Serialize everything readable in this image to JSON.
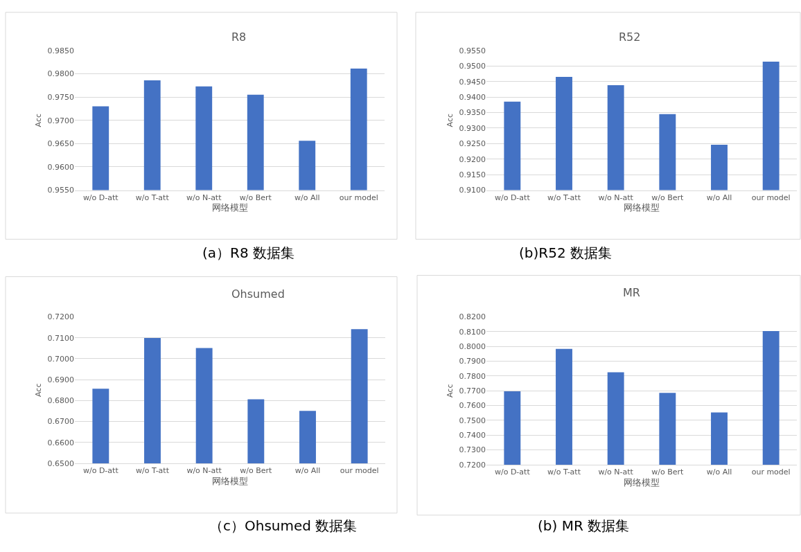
{
  "chart_data": [
    {
      "type": "bar",
      "title": "R8",
      "xlabel": "网络模型",
      "ylabel": "Acc",
      "categories": [
        "w/o D-att",
        "w/o T-att",
        "w/o N-att",
        "w/o Bert",
        "w/o All",
        "our model"
      ],
      "values": [
        0.973,
        0.9786,
        0.9773,
        0.9755,
        0.9656,
        0.9811
      ],
      "color": "#4472c4",
      "ylim": [
        0.955,
        0.985
      ],
      "yticks": [
        {
          "value": 0.955,
          "label": "0.9550"
        },
        {
          "value": 0.96,
          "label": "0.9600"
        },
        {
          "value": 0.965,
          "label": "0.9650"
        },
        {
          "value": 0.97,
          "label": "0.9700"
        },
        {
          "value": 0.975,
          "label": "0.9750"
        },
        {
          "value": 0.98,
          "label": "0.9800"
        },
        {
          "value": 0.985,
          "label": "0.9850"
        }
      ],
      "grid": "y",
      "annotations": [
        "(a）R8 数据集"
      ]
    },
    {
      "type": "bar",
      "title": "R52",
      "xlabel": "网络模型",
      "ylabel": "Acc",
      "categories": [
        "w/o D-att",
        "w/o T-att",
        "w/o N-att",
        "w/o Bert",
        "w/o All",
        "our model"
      ],
      "values": [
        0.9385,
        0.9465,
        0.9438,
        0.9345,
        0.9246,
        0.9514
      ],
      "color": "#4472c4",
      "ylim": [
        0.91,
        0.955
      ],
      "yticks": [
        {
          "value": 0.91,
          "label": "0.9100"
        },
        {
          "value": 0.915,
          "label": "0.9150"
        },
        {
          "value": 0.92,
          "label": "0.9200"
        },
        {
          "value": 0.925,
          "label": "0.9250"
        },
        {
          "value": 0.93,
          "label": "0.9300"
        },
        {
          "value": 0.935,
          "label": "0.9350"
        },
        {
          "value": 0.94,
          "label": "0.9400"
        },
        {
          "value": 0.945,
          "label": "0.9450"
        },
        {
          "value": 0.95,
          "label": "0.9500"
        },
        {
          "value": 0.955,
          "label": "0.9550"
        }
      ],
      "grid": "y",
      "annotations": [
        "(b)R52 数据集"
      ]
    },
    {
      "type": "bar",
      "title": "Ohsumed",
      "xlabel": "网络模型",
      "ylabel": "Acc",
      "categories": [
        "w/o D-att",
        "w/o T-att",
        "w/o N-att",
        "w/o Bert",
        "w/o All",
        "our model"
      ],
      "values": [
        0.6857,
        0.7099,
        0.7051,
        0.6806,
        0.6751,
        0.7141
      ],
      "color": "#4472c4",
      "ylim": [
        0.65,
        0.72
      ],
      "yticks": [
        {
          "value": 0.65,
          "label": "0.6500"
        },
        {
          "value": 0.66,
          "label": "0.6600"
        },
        {
          "value": 0.67,
          "label": "0.6700"
        },
        {
          "value": 0.68,
          "label": "0.6800"
        },
        {
          "value": 0.69,
          "label": "0.6900"
        },
        {
          "value": 0.7,
          "label": "0.7000"
        },
        {
          "value": 0.71,
          "label": "0.7100"
        },
        {
          "value": 0.72,
          "label": "0.7200"
        }
      ],
      "grid": "y",
      "annotations": [
        "（c）Ohsumed 数据集"
      ]
    },
    {
      "type": "bar",
      "title": "MR",
      "xlabel": "网络模型",
      "ylabel": "Acc",
      "categories": [
        "w/o D-att",
        "w/o T-att",
        "w/o N-att",
        "w/o Bert",
        "w/o All",
        "our model"
      ],
      "values": [
        0.7697,
        0.7983,
        0.7825,
        0.7686,
        0.7553,
        0.8104
      ],
      "color": "#4472c4",
      "ylim": [
        0.72,
        0.82
      ],
      "yticks": [
        {
          "value": 0.72,
          "label": "0.7200"
        },
        {
          "value": 0.73,
          "label": "0.7300"
        },
        {
          "value": 0.74,
          "label": "0.7400"
        },
        {
          "value": 0.75,
          "label": "0.7500"
        },
        {
          "value": 0.76,
          "label": "0.7600"
        },
        {
          "value": 0.77,
          "label": "0.7700"
        },
        {
          "value": 0.78,
          "label": "0.7800"
        },
        {
          "value": 0.79,
          "label": "0.7900"
        },
        {
          "value": 0.8,
          "label": "0.8000"
        },
        {
          "value": 0.81,
          "label": "0.8100"
        },
        {
          "value": 0.82,
          "label": "0.8200"
        }
      ],
      "grid": "y",
      "annotations": [
        "(b) MR 数据集"
      ]
    }
  ]
}
